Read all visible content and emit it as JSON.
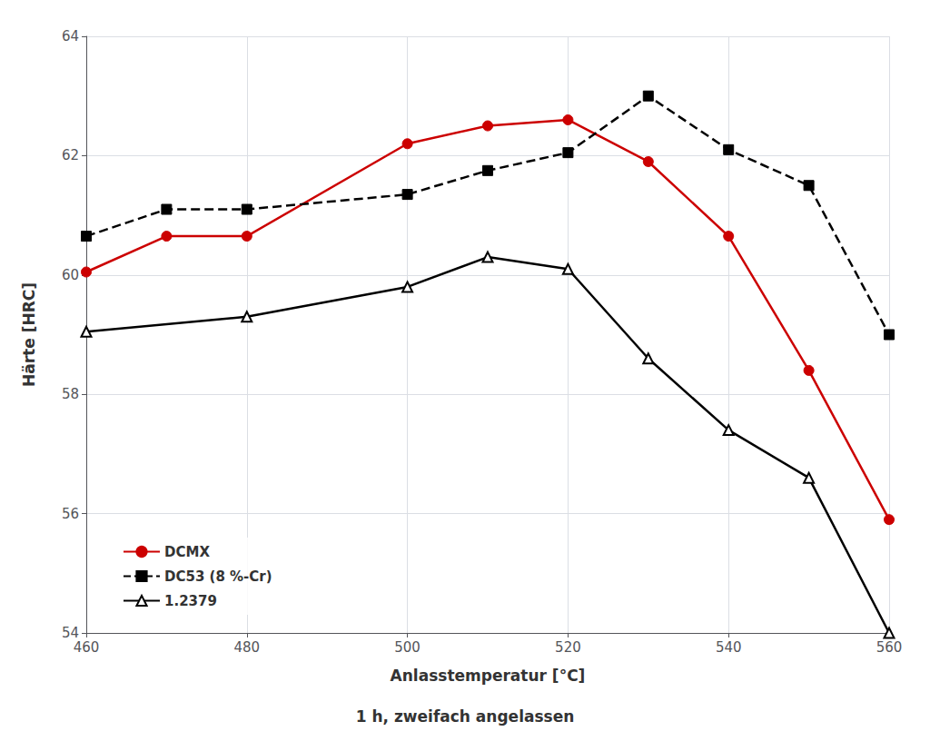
{
  "chart_data": {
    "type": "line",
    "xlabel": "Anlasstemperatur [°C]",
    "ylabel": "Härte [HRC]",
    "annotations": [
      {
        "text": "1 h, zweifach angelassen"
      }
    ],
    "xlim": [
      460,
      560
    ],
    "ylim": [
      54,
      64
    ],
    "xticks": [
      460,
      480,
      500,
      520,
      540,
      560
    ],
    "yticks": [
      54,
      56,
      58,
      60,
      62,
      64
    ],
    "grid": true,
    "legend": "lower left",
    "series": [
      {
        "name": "DCMX",
        "color": "#cc0000",
        "marker": "circle",
        "line_style": "solid",
        "x": [
          460,
          470,
          480,
          500,
          510,
          520,
          530,
          540,
          550,
          560
        ],
        "values": [
          60.05,
          60.65,
          60.65,
          62.2,
          62.5,
          62.6,
          61.9,
          60.65,
          58.4,
          55.9
        ]
      },
      {
        "name": "DC53 (8 %-Cr)",
        "color": "#000000",
        "marker": "square",
        "line_style": "dashed",
        "x": [
          460,
          470,
          480,
          500,
          510,
          520,
          530,
          540,
          550,
          560
        ],
        "values": [
          60.65,
          61.1,
          61.1,
          61.35,
          61.75,
          62.05,
          63.0,
          62.1,
          61.5,
          59.0
        ]
      },
      {
        "name": "1.2379",
        "color": "#000000",
        "marker": "triangle-open",
        "line_style": "solid",
        "x": [
          460,
          480,
          500,
          510,
          520,
          530,
          540,
          550,
          560
        ],
        "values": [
          59.05,
          59.3,
          59.8,
          60.3,
          60.1,
          58.6,
          57.4,
          56.6,
          54.0
        ]
      }
    ]
  }
}
